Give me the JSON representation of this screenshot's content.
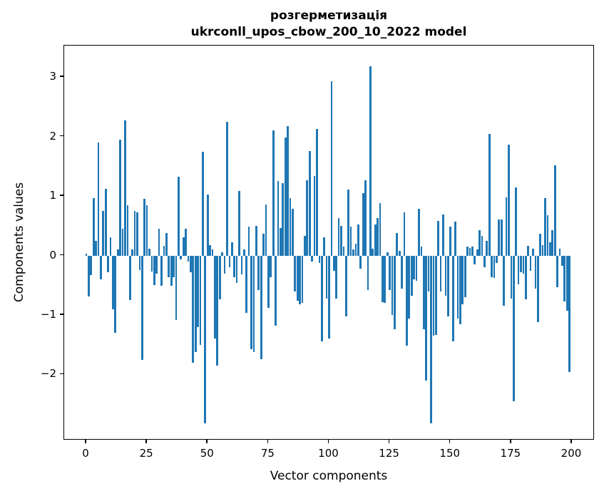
{
  "figure": {
    "title_line1": "розгерметизація",
    "title_line2": "ukrconll_upos_cbow_200_10_2022 model",
    "xlabel": "Vector components",
    "ylabel": "Components values"
  },
  "chart_data": {
    "type": "bar",
    "title": "розгерметизація\nukrconll_upos_cbow_200_10_2022 model",
    "xlabel": "Vector components",
    "ylabel": "Components values",
    "bar_color": "#1f77b4",
    "spine_color": "#000000",
    "grid": false,
    "legend_position": "none",
    "n_bars": 200,
    "xticks": [
      0,
      25,
      50,
      75,
      100,
      125,
      150,
      175,
      200
    ],
    "yticks": [
      -2,
      -1,
      0,
      1,
      2,
      3
    ],
    "xlim": [
      -9.1,
      209.4
    ],
    "ylim": [
      -3.11,
      3.53
    ],
    "bar_width_units": 0.8,
    "values": [
      0.03,
      -0.69,
      -0.33,
      0.97,
      0.25,
      1.9,
      -0.4,
      0.75,
      1.12,
      -0.28,
      0.3,
      -0.9,
      -1.3,
      0.1,
      1.95,
      0.45,
      2.27,
      0.85,
      -0.75,
      0.1,
      0.75,
      0.72,
      -0.25,
      -1.75,
      0.95,
      0.85,
      0.12,
      -0.27,
      -0.5,
      -0.3,
      0.45,
      -0.51,
      0.16,
      0.38,
      -0.36,
      -0.51,
      -0.36,
      -1.09,
      1.32,
      -0.06,
      0.3,
      0.45,
      -0.1,
      -0.28,
      -1.8,
      -1.62,
      -1.2,
      -1.5,
      1.74,
      -2.82,
      1.03,
      0.18,
      0.1,
      -1.4,
      -1.85,
      -0.74,
      0.05,
      -0.3,
      2.25,
      -0.2,
      0.22,
      -0.36,
      -0.46,
      1.09,
      -0.32,
      0.1,
      -0.96,
      0.48,
      -1.58,
      -1.62,
      0.5,
      -0.58,
      -1.74,
      0.36,
      0.86,
      -0.88,
      -0.36,
      2.1,
      -1.18,
      1.25,
      0.46,
      1.22,
      1.98,
      2.18,
      0.96,
      0.78,
      -0.6,
      -0.76,
      -0.82,
      -0.8,
      0.33,
      1.27,
      1.76,
      -0.1,
      1.34,
      2.13,
      -0.12,
      -1.45,
      0.31,
      -0.73,
      -1.4,
      2.93,
      -0.26,
      -0.72,
      0.63,
      0.5,
      0.15,
      -1.02,
      1.11,
      0.48,
      0.1,
      0.2,
      0.52,
      -0.22,
      1.05,
      1.26,
      -0.58,
      3.18,
      0.12,
      0.52,
      0.63,
      0.88,
      -0.78,
      -0.8,
      0.05,
      -0.58,
      -1.0,
      -1.24,
      0.38,
      0.08,
      -0.56,
      0.73,
      -1.52,
      -1.06,
      -0.68,
      -0.4,
      -0.42,
      0.78,
      0.15,
      -1.24,
      -2.1,
      -0.6,
      -2.82,
      -1.35,
      -1.34,
      0.58,
      -0.6,
      0.69,
      -0.68,
      -1.02,
      0.49,
      -1.44,
      0.57,
      -1.06,
      -1.16,
      -0.82,
      -0.7,
      0.15,
      0.13,
      0.15,
      -0.15,
      0.1,
      0.42,
      0.33,
      -0.2,
      0.25,
      2.04,
      -0.36,
      -0.38,
      -0.12,
      0.6,
      0.6,
      -0.84,
      0.98,
      1.87,
      -0.72,
      -2.45,
      1.15,
      -0.48,
      -0.28,
      -0.3,
      -0.74,
      0.16,
      -0.26,
      0.12,
      -0.56,
      -1.12,
      0.36,
      0.17,
      0.96,
      0.68,
      0.22,
      0.42,
      1.52,
      -0.53,
      0.11,
      -0.17,
      -0.77,
      -0.93,
      -1.96
    ]
  }
}
